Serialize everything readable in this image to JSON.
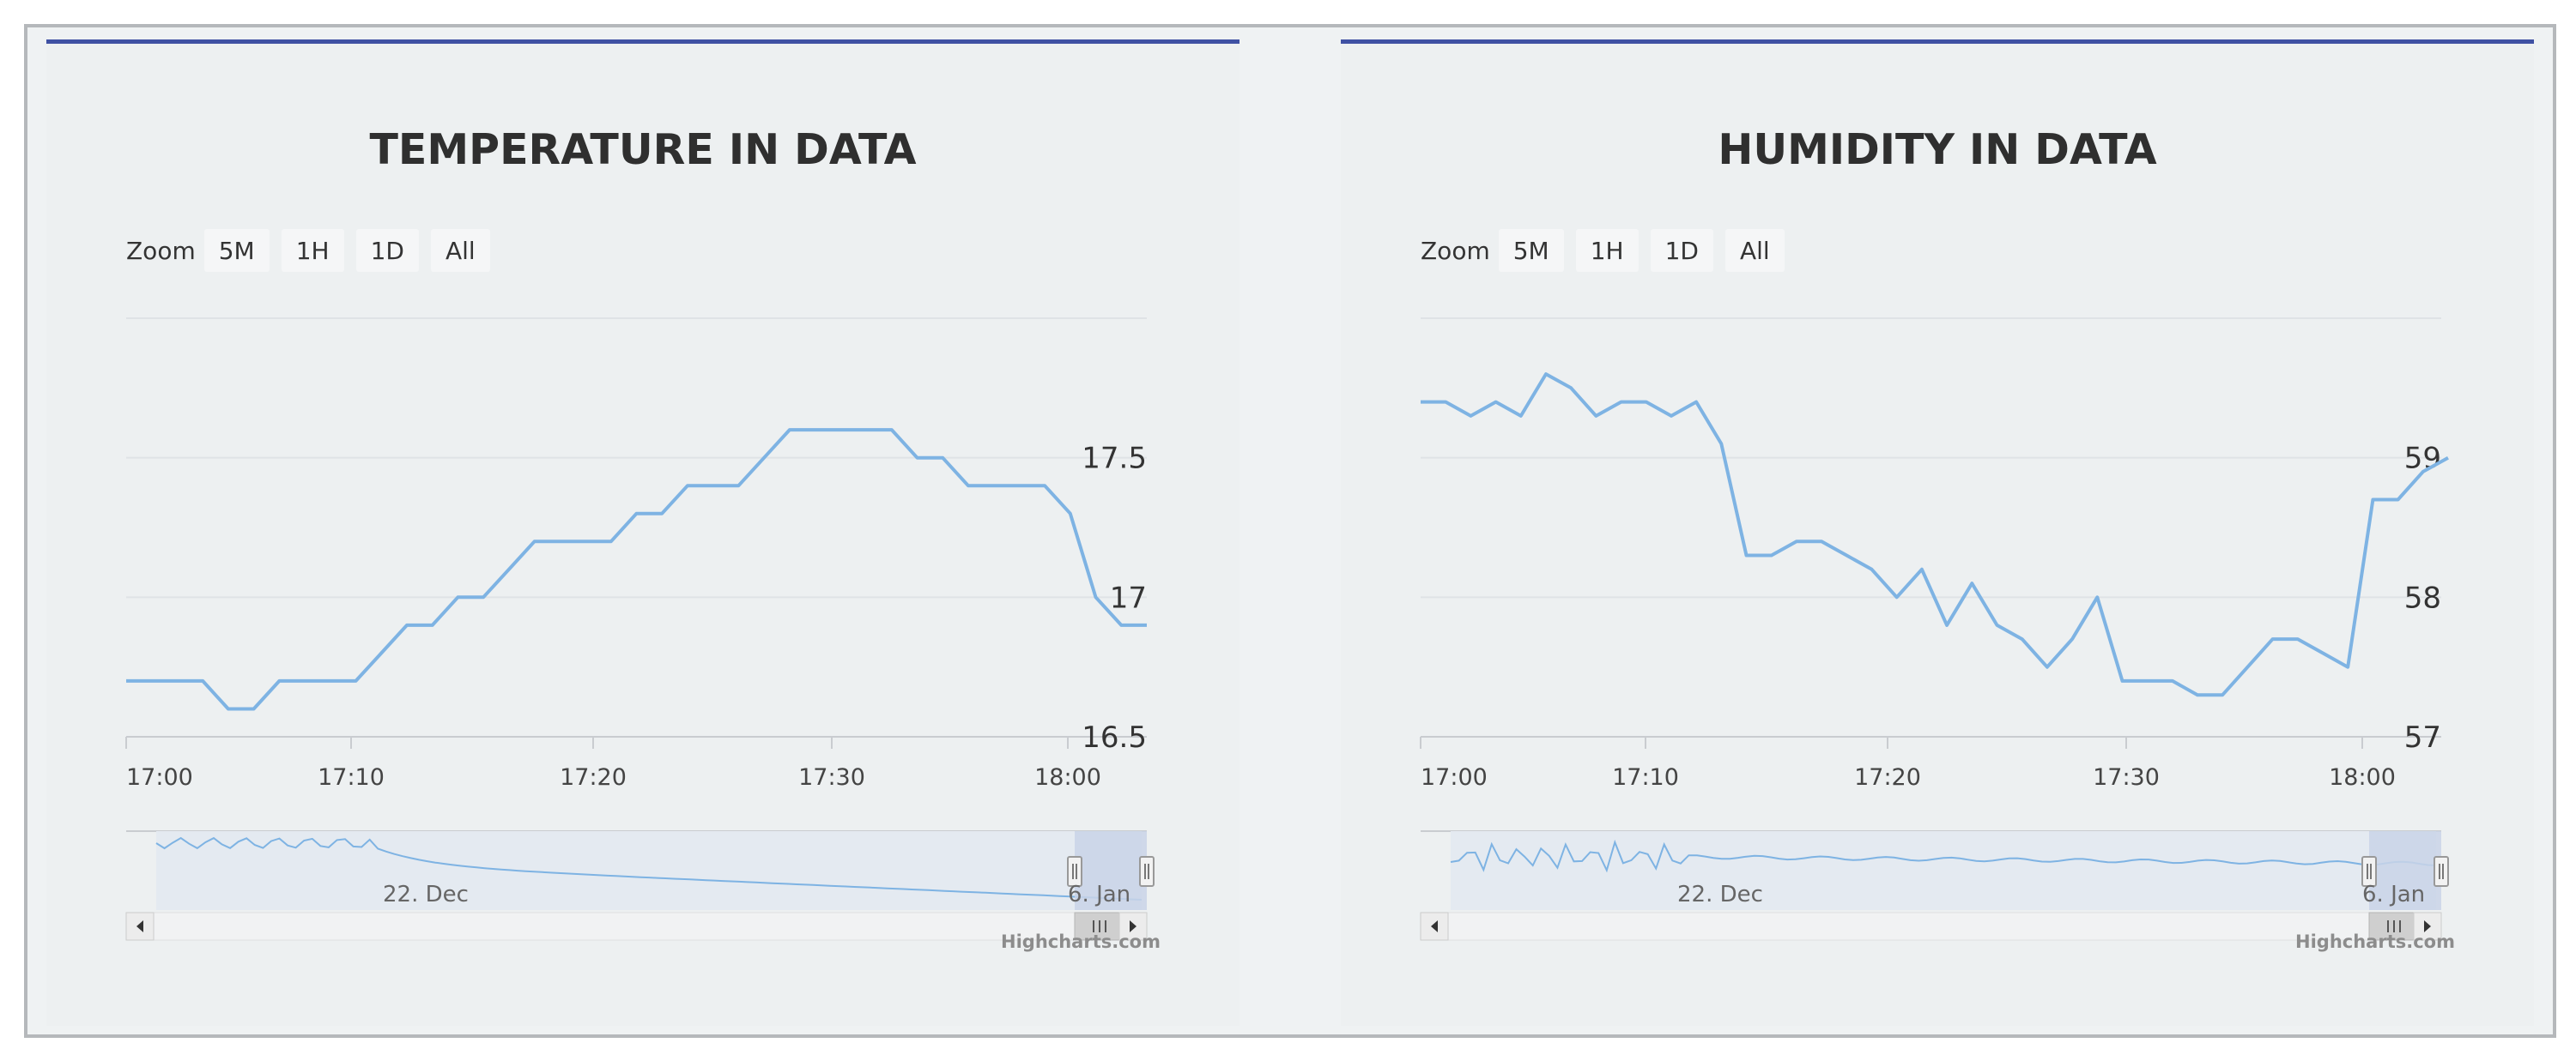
{
  "zoom": {
    "label": "Zoom",
    "buttons": [
      "5M",
      "1H",
      "1D",
      "All"
    ]
  },
  "credit": "Highcharts.com",
  "colors": {
    "accent": "#3f51a3",
    "line": "#7eb3e3",
    "nav_fill": "#c9d4e8"
  },
  "chart_data": [
    {
      "type": "line",
      "title": "TEMPERATURE IN DATA",
      "x_ticks": [
        "17:00",
        "17:10",
        "17:20",
        "17:30",
        "18:00"
      ],
      "y_ticks": [
        "17.5",
        "17",
        "16.5"
      ],
      "ylim": [
        16.5,
        18.0
      ],
      "grid": true,
      "series": [
        {
          "x": [
            "17:00",
            "17:01",
            "17:02",
            "17:03",
            "17:04",
            "17:05",
            "17:06",
            "17:07",
            "17:08",
            "17:09",
            "17:10",
            "17:11",
            "17:12",
            "17:13",
            "17:14",
            "17:15",
            "17:16",
            "17:17",
            "17:18",
            "17:19",
            "17:20",
            "17:21",
            "17:22",
            "17:23",
            "17:24",
            "17:25",
            "17:26",
            "17:27",
            "17:28",
            "17:29",
            "17:30",
            "17:31",
            "17:32",
            "17:33",
            "17:34",
            "17:35",
            "17:36",
            "17:37",
            "17:38",
            "17:39",
            "17:40"
          ],
          "values": [
            16.7,
            16.7,
            16.7,
            16.7,
            16.6,
            16.6,
            16.7,
            16.7,
            16.7,
            16.7,
            16.8,
            16.9,
            16.9,
            17.0,
            17.0,
            17.1,
            17.2,
            17.2,
            17.2,
            17.2,
            17.3,
            17.3,
            17.4,
            17.4,
            17.4,
            17.5,
            17.6,
            17.6,
            17.6,
            17.6,
            17.6,
            17.5,
            17.5,
            17.4,
            17.4,
            17.4,
            17.4,
            17.3,
            17.0,
            16.9,
            16.9
          ]
        }
      ],
      "navigator": {
        "labels": [
          "22. Dec",
          "6. Jan"
        ]
      }
    },
    {
      "type": "line",
      "title": "HUMIDITY IN DATA",
      "x_ticks": [
        "17:00",
        "17:10",
        "17:20",
        "17:30",
        "18:00"
      ],
      "y_ticks": [
        "59",
        "58",
        "57"
      ],
      "ylim": [
        57,
        60
      ],
      "grid": true,
      "series": [
        {
          "x": [
            "17:00",
            "17:01",
            "17:02",
            "17:03",
            "17:04",
            "17:05",
            "17:06",
            "17:07",
            "17:08",
            "17:09",
            "17:10",
            "17:11",
            "17:12",
            "17:13",
            "17:14",
            "17:15",
            "17:16",
            "17:17",
            "17:18",
            "17:19",
            "17:20",
            "17:21",
            "17:22",
            "17:23",
            "17:24",
            "17:25",
            "17:26",
            "17:27",
            "17:28",
            "17:29",
            "17:30",
            "17:31",
            "17:32",
            "17:33",
            "17:34",
            "17:35",
            "17:36",
            "17:37",
            "17:38",
            "17:39",
            "17:40",
            "17:41"
          ],
          "values": [
            59.4,
            59.4,
            59.3,
            59.4,
            59.3,
            59.6,
            59.5,
            59.3,
            59.4,
            59.4,
            59.3,
            59.4,
            59.1,
            58.3,
            58.3,
            58.4,
            58.4,
            58.3,
            58.2,
            58.0,
            58.2,
            57.8,
            58.1,
            57.8,
            57.7,
            57.5,
            57.7,
            58.0,
            57.4,
            57.4,
            57.4,
            57.3,
            57.3,
            57.5,
            57.7,
            57.7,
            57.6,
            57.5,
            58.7,
            58.7,
            58.9,
            59.0
          ]
        }
      ],
      "navigator": {
        "labels": [
          "22. Dec",
          "6. Jan"
        ]
      }
    }
  ]
}
